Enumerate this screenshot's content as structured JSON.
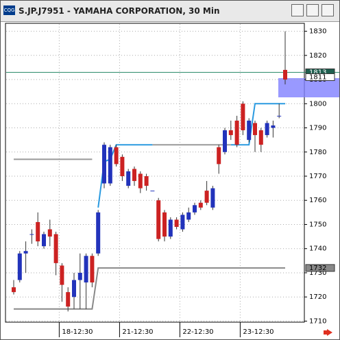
{
  "chart_data": {
    "type": "candlestick",
    "title": "S.JP.J7951 - YAMAHA CORPORATION, 30 Min",
    "categories": [
      null,
      null,
      null,
      null,
      null,
      null,
      null,
      null,
      "18-12:30",
      null,
      null,
      null,
      null,
      null,
      null,
      null,
      null,
      null,
      "21-12:30",
      null,
      null,
      null,
      null,
      null,
      null,
      null,
      null,
      null,
      "22-12:30",
      null,
      null,
      null,
      null,
      null,
      null,
      null,
      null,
      null,
      "23-12:30",
      null,
      null,
      null,
      null,
      null,
      null,
      null
    ],
    "open": [
      1724,
      1727,
      1738,
      1746,
      1751,
      1741,
      1748,
      1746,
      1733,
      1722,
      1720,
      1727,
      1726,
      1737,
      1738,
      1767,
      1767,
      1782,
      1778,
      1766,
      1773,
      1771,
      1770,
      1764,
      1760,
      1755,
      1745,
      1752,
      1748,
      1752,
      1755,
      1759,
      1764,
      1757,
      1782,
      1780,
      1789,
      1793,
      1800,
      1785,
      1792,
      1789,
      1787,
      1790,
      1795,
      1814
    ],
    "close": [
      1722,
      1738,
      1739,
      1746,
      1743,
      1746,
      1745,
      1734,
      1725,
      1716,
      1727,
      1730,
      1737,
      1726,
      1755,
      1783,
      1782,
      1775,
      1770,
      1772,
      1768,
      1765,
      1766,
      1764,
      1744,
      1745,
      1752,
      1749,
      1754,
      1755,
      1758,
      1757,
      1759,
      1765,
      1775,
      1789,
      1787,
      1783,
      1789,
      1793,
      1787,
      1783,
      1792,
      1791,
      1795,
      1810
    ],
    "high": [
      1727,
      1739,
      1743,
      1748,
      1755,
      1747,
      1752,
      1747,
      1734,
      1724,
      1730,
      1738,
      1738,
      1738,
      1756,
      1784,
      1783,
      1783,
      1779,
      1773,
      1774,
      1772,
      1771,
      1764,
      1761,
      1756,
      1753,
      1753,
      1755,
      1757,
      1759,
      1760,
      1768,
      1766,
      1783,
      1790,
      1793,
      1795,
      1801,
      1794,
      1793,
      1790,
      1793,
      1793,
      1800,
      1830
    ],
    "low": [
      1721,
      1726,
      1730,
      1742,
      1741,
      1740,
      1741,
      1729,
      1718,
      1714,
      1715,
      1715,
      1715,
      1724,
      1737,
      1765,
      1766,
      1774,
      1768,
      1765,
      1766,
      1763,
      1764,
      1764,
      1743,
      1743,
      1744,
      1748,
      1747,
      1751,
      1754,
      1756,
      1758,
      1756,
      1771,
      1779,
      1785,
      1782,
      1787,
      1784,
      1780,
      1780,
      1786,
      1786,
      1794,
      1808
    ],
    "up_color": "#2233bb",
    "down_color": "#cc2222",
    "lines": [
      {
        "color": "#2a9ae0",
        "values": [
          null,
          null,
          null,
          null,
          null,
          null,
          null,
          null,
          null,
          null,
          null,
          null,
          null,
          null,
          1757,
          1776,
          1777,
          1783,
          1783,
          1783,
          1783,
          1783,
          1783,
          1783,
          null,
          null,
          null,
          null,
          null,
          null,
          null,
          null,
          null,
          null,
          null,
          null,
          1783,
          1783,
          1783,
          1783,
          1800,
          1800,
          1800,
          1800,
          1800,
          1800
        ]
      },
      {
        "color": "#999999",
        "values": [
          1777,
          1777,
          1777,
          1777,
          1777,
          1777,
          1777,
          1777,
          1777,
          1777,
          1777,
          1777,
          1777,
          1777,
          null,
          null,
          null,
          null,
          null,
          null,
          null,
          null,
          null,
          1783,
          1783,
          1783,
          1783,
          1783,
          1783,
          1783,
          1783,
          1783,
          1783,
          1783,
          1783,
          1783,
          1783,
          null,
          null,
          null,
          null,
          null,
          null,
          null,
          null,
          null
        ]
      },
      {
        "color": "#888888",
        "values": [
          1715,
          1715,
          1715,
          1715,
          1715,
          1715,
          1715,
          1715,
          1715,
          1715,
          1715,
          1715,
          1715,
          1715,
          1732,
          1732,
          1732,
          1732,
          1732,
          1732,
          1732,
          1732,
          1732,
          1732,
          1732,
          1732,
          1732,
          1732,
          1732,
          1732,
          1732,
          1732,
          1732,
          1732,
          1732,
          1732,
          1732,
          1732,
          1732,
          1732,
          1732,
          1732,
          1732,
          1732,
          1732,
          1732
        ]
      }
    ],
    "hline": {
      "value": 1813,
      "color": "#2a8a6a"
    },
    "price_labels": [
      {
        "value": 1813,
        "bg": "#1f5f4f",
        "fg": "#ffffff"
      },
      {
        "value": 1811,
        "bg": "#ffffff",
        "fg": "#000000"
      },
      {
        "value": 1732,
        "bg": "#888888",
        "fg": "#000000"
      }
    ],
    "ylim": [
      1707,
      1833
    ],
    "yticks": [
      1710,
      1720,
      1730,
      1740,
      1750,
      1760,
      1770,
      1780,
      1790,
      1800,
      1810,
      1820,
      1830
    ],
    "grid": true
  }
}
